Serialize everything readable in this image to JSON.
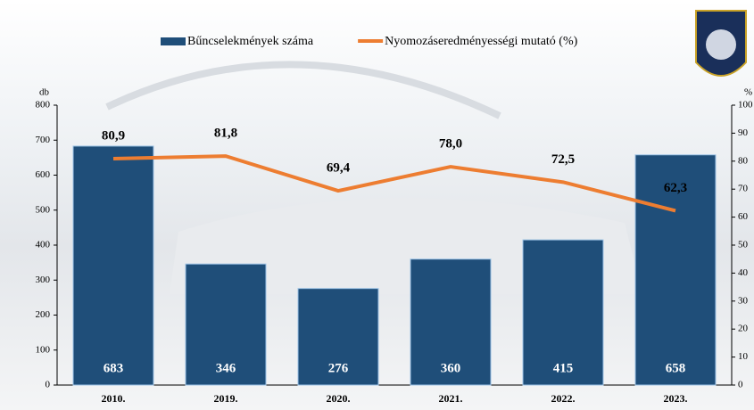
{
  "chart_data": {
    "type": "bar-line",
    "categories": [
      "2010.",
      "2019.",
      "2020.",
      "2021.",
      "2022.",
      "2023."
    ],
    "ylabel": "db",
    "y2label": "%",
    "ylim": [
      0,
      800
    ],
    "yticks": [
      0,
      100,
      200,
      300,
      400,
      500,
      600,
      700,
      800
    ],
    "y2lim": [
      0,
      100
    ],
    "y2ticks": [
      0,
      10,
      20,
      30,
      40,
      50,
      60,
      70,
      80,
      90,
      100
    ],
    "series": [
      {
        "name": "Bűncselekmények száma",
        "type": "bar",
        "color": "#1f4e79",
        "values": [
          683,
          346,
          276,
          360,
          415,
          658
        ]
      },
      {
        "name": "Nyomozáseredményességi mutató (%)",
        "type": "line",
        "axis": "y2",
        "color": "#ed7d31",
        "values": [
          80.9,
          81.8,
          69.4,
          78.0,
          72.5,
          62.3
        ],
        "value_labels": [
          "80,9",
          "81,8",
          "69,4",
          "78,0",
          "72,5",
          "62,3"
        ]
      }
    ]
  }
}
